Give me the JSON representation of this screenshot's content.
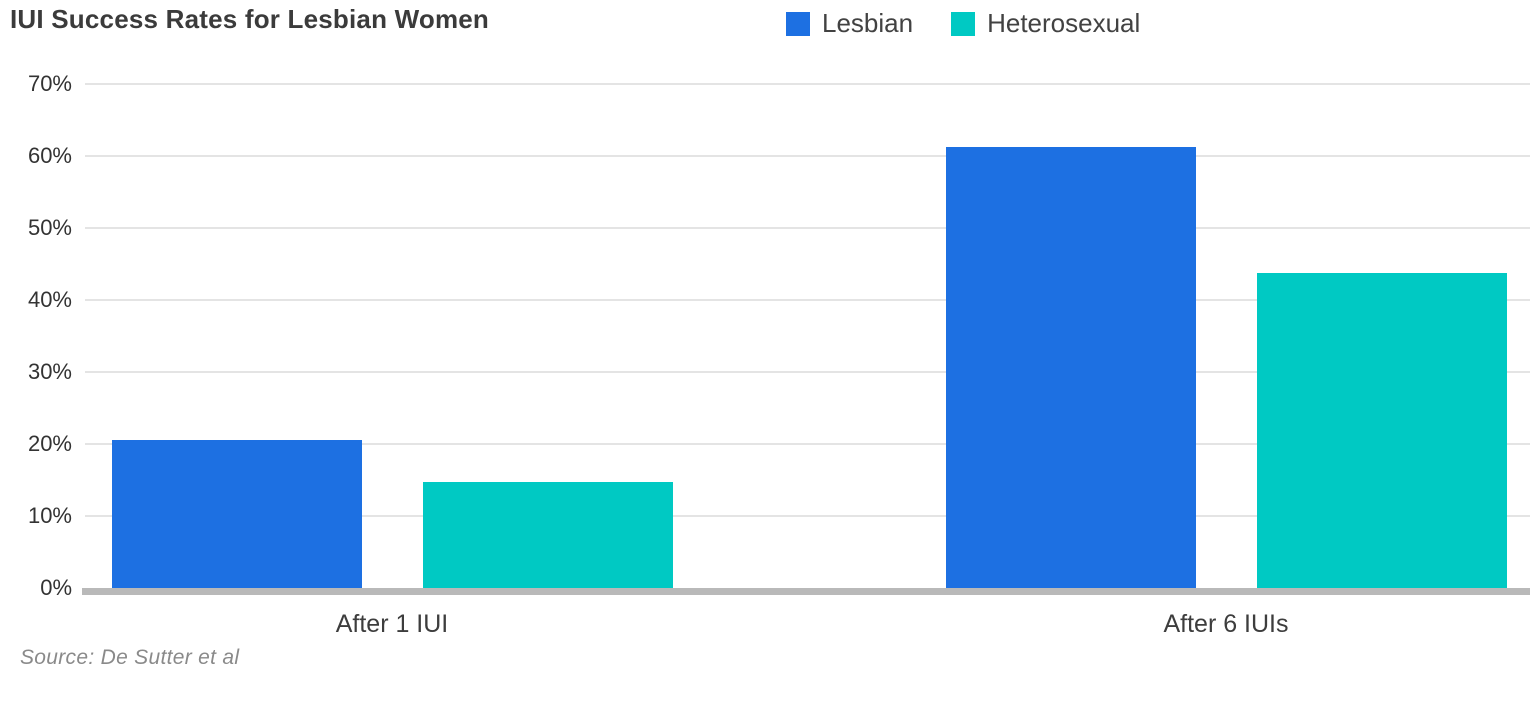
{
  "title": "IUI Success Rates for Lesbian Women",
  "source": "Source: De Sutter et al",
  "colors": {
    "lesbian": "#1d70e2",
    "heterosexual": "#00c9c3",
    "gridline": "#e4e4e4",
    "axis": "#b9b9b9",
    "title_text": "#3b3b3b",
    "tick_text": "#333333"
  },
  "chart_data": {
    "type": "bar",
    "title": "IUI Success Rates for Lesbian Women",
    "categories": [
      "After 1 IUI",
      "After 6 IUIs"
    ],
    "series": [
      {
        "name": "Lesbian",
        "color": "#1d70e2",
        "values": [
          20.6,
          61.2
        ]
      },
      {
        "name": "Heterosexual",
        "color": "#00c9c3",
        "values": [
          14.7,
          43.8
        ]
      }
    ],
    "xlabel": "",
    "ylabel": "",
    "ylim": [
      0,
      70
    ],
    "ytick_step": 10,
    "yticks": [
      "70%",
      "60%",
      "50%",
      "40%",
      "30%",
      "20%",
      "10%",
      "0%"
    ],
    "grid": true,
    "legend_position": "top",
    "annotation": "Source: De Sutter et al"
  }
}
